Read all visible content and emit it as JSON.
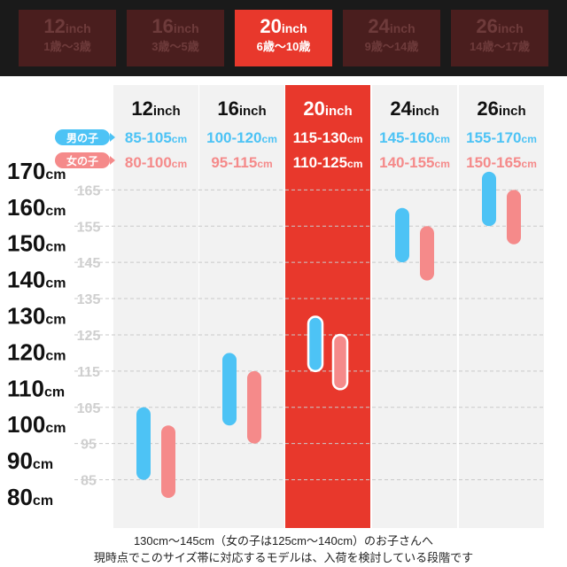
{
  "tabs": [
    {
      "size": "12",
      "unit": "inch",
      "age": "1歳〜3歳",
      "active": false
    },
    {
      "size": "16",
      "unit": "inch",
      "age": "3歳〜5歳",
      "active": false
    },
    {
      "size": "20",
      "unit": "inch",
      "age": "6歳〜10歳",
      "active": true
    },
    {
      "size": "24",
      "unit": "inch",
      "age": "9歳〜14歳",
      "active": false
    },
    {
      "size": "26",
      "unit": "inch",
      "age": "14歳〜17歳",
      "active": false
    }
  ],
  "legend": {
    "boy": "男の子",
    "girl": "女の子"
  },
  "colors": {
    "boy": "#4dc3f5",
    "girl": "#f58a8a",
    "highlight": "#e8382c",
    "column_bg": "#f2f2f2"
  },
  "chart_data": {
    "type": "bar",
    "categories": [
      "12inch",
      "16inch",
      "20inch",
      "24inch",
      "26inch"
    ],
    "column_labels": [
      {
        "num": "12",
        "unit": "inch"
      },
      {
        "num": "16",
        "unit": "inch"
      },
      {
        "num": "20",
        "unit": "inch"
      },
      {
        "num": "24",
        "unit": "inch"
      },
      {
        "num": "26",
        "unit": "inch"
      }
    ],
    "highlight_index": 2,
    "series": [
      {
        "name": "男の子",
        "ranges": [
          [
            85,
            105
          ],
          [
            100,
            120
          ],
          [
            115,
            130
          ],
          [
            145,
            160
          ],
          [
            155,
            170
          ]
        ],
        "labels": [
          "85-105cm",
          "100-120cm",
          "115-130cm",
          "145-160cm",
          "155-170cm"
        ]
      },
      {
        "name": "女の子",
        "ranges": [
          [
            80,
            100
          ],
          [
            95,
            115
          ],
          [
            110,
            125
          ],
          [
            140,
            155
          ],
          [
            150,
            165
          ]
        ],
        "labels": [
          "80-100cm",
          "95-115cm",
          "110-125cm",
          "140-155cm",
          "150-165cm"
        ]
      }
    ],
    "y_axis_labels": [
      "170cm",
      "160cm",
      "150cm",
      "140cm",
      "130cm",
      "120cm",
      "110cm",
      "100cm",
      "90cm",
      "80cm"
    ],
    "grid_labels": [
      "165",
      "155",
      "145",
      "135",
      "125",
      "115",
      "105",
      "95",
      "85"
    ],
    "ylim": [
      80,
      170
    ]
  },
  "footer": {
    "line1": "130cm〜145cm（女の子は125cm〜140cm）のお子さんへ",
    "line2": "現時点でこのサイズ帯に対応するモデルは、入荷を検討している段階です"
  }
}
